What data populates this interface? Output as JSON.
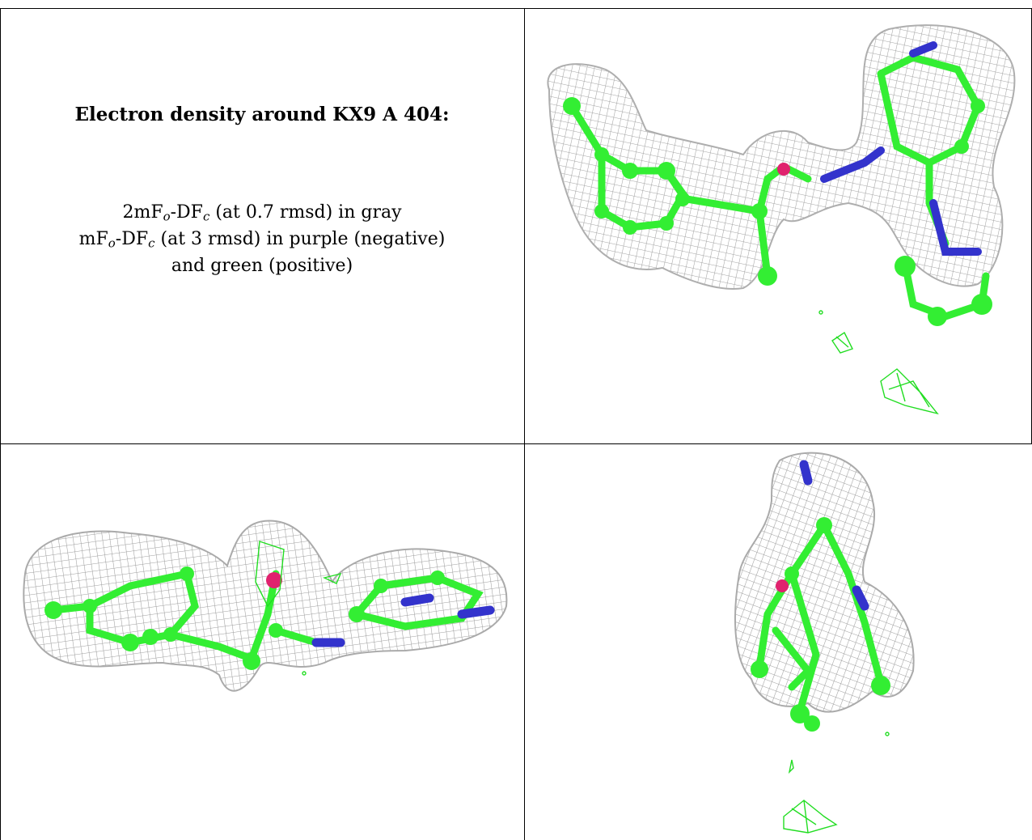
{
  "title": "Electron density around KX9 A 404:",
  "legend": {
    "line1": {
      "pre": "2mF",
      "o": "o",
      "mid": "-DF",
      "c": "c",
      "post": " (at 0.7 rmsd) in gray"
    },
    "line2": {
      "pre": "mF",
      "o": "o",
      "mid": "-DF",
      "c": "c",
      "post": " (at 3 rmsd) in purple (negative)"
    },
    "line3": "and green (positive)"
  },
  "colors": {
    "mesh_2fofc": "#a8a8a8",
    "carbon": "#33ee33",
    "nitrogen": "#3333cc",
    "oxygen": "#e0226e",
    "positive_density": "#22dd22",
    "negative_density": "#a020f0"
  }
}
